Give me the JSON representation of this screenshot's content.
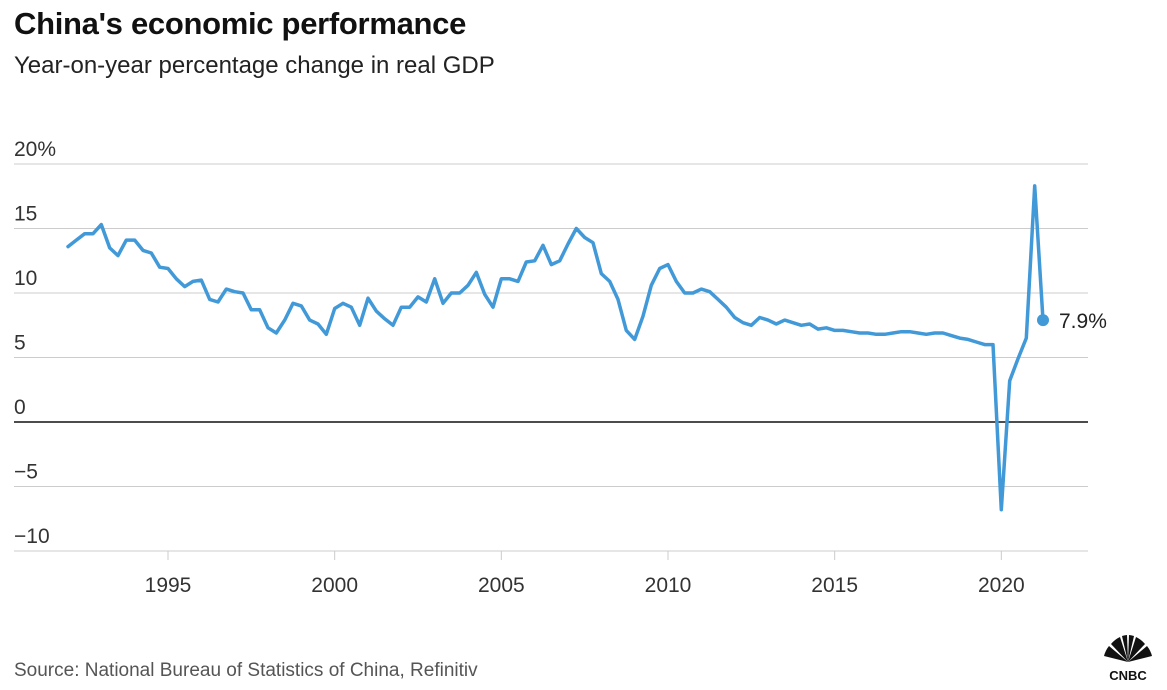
{
  "header": {
    "title": "China's economic performance",
    "subtitle": "Year-on-year percentage change in real GDP"
  },
  "footer": {
    "source": "Source: National Bureau of Statistics of China, Refinitiv",
    "logo_text": "CNBC",
    "logo_icon": "nbc-peacock-icon"
  },
  "chart_data": {
    "type": "line",
    "title": "China's economic performance",
    "subtitle": "Year-on-year percentage change in real GDP",
    "xlabel": "",
    "ylabel": "",
    "xlim": [
      1991.7,
      2022.6
    ],
    "ylim": [
      -10,
      20
    ],
    "x_ticks": [
      1995,
      2000,
      2005,
      2010,
      2015,
      2020
    ],
    "x_tick_labels": [
      "1995",
      "2000",
      "2005",
      "2010",
      "2015",
      "2020"
    ],
    "y_ticks": [
      20,
      15,
      10,
      5,
      0,
      -5,
      -10
    ],
    "y_tick_labels": [
      "20%",
      "15",
      "10",
      "5",
      "0",
      "−5",
      "−10"
    ],
    "grid": "horizontal",
    "line_color": "#4299d8",
    "end_label": "7.9%",
    "series": [
      {
        "values": [
          [
            1992.0,
            13.6
          ],
          [
            1992.25,
            14.1
          ],
          [
            1992.5,
            14.6
          ],
          [
            1992.75,
            14.6
          ],
          [
            1993.0,
            15.3
          ],
          [
            1993.25,
            13.5
          ],
          [
            1993.5,
            12.9
          ],
          [
            1993.75,
            14.1
          ],
          [
            1994.0,
            14.1
          ],
          [
            1994.25,
            13.3
          ],
          [
            1994.5,
            13.1
          ],
          [
            1994.75,
            12.0
          ],
          [
            1995.0,
            11.9
          ],
          [
            1995.25,
            11.1
          ],
          [
            1995.5,
            10.5
          ],
          [
            1995.75,
            10.9
          ],
          [
            1996.0,
            11.0
          ],
          [
            1996.25,
            9.5
          ],
          [
            1996.5,
            9.3
          ],
          [
            1996.75,
            10.3
          ],
          [
            1997.0,
            10.1
          ],
          [
            1997.25,
            10.0
          ],
          [
            1997.5,
            8.7
          ],
          [
            1997.75,
            8.7
          ],
          [
            1998.0,
            7.3
          ],
          [
            1998.25,
            6.9
          ],
          [
            1998.5,
            7.9
          ],
          [
            1998.75,
            9.2
          ],
          [
            1999.0,
            9.0
          ],
          [
            1999.25,
            7.9
          ],
          [
            1999.5,
            7.6
          ],
          [
            1999.75,
            6.8
          ],
          [
            2000.0,
            8.8
          ],
          [
            2000.25,
            9.2
          ],
          [
            2000.5,
            8.9
          ],
          [
            2000.75,
            7.5
          ],
          [
            2001.0,
            9.6
          ],
          [
            2001.25,
            8.6
          ],
          [
            2001.5,
            8.0
          ],
          [
            2001.75,
            7.5
          ],
          [
            2002.0,
            8.9
          ],
          [
            2002.25,
            8.9
          ],
          [
            2002.5,
            9.7
          ],
          [
            2002.75,
            9.3
          ],
          [
            2003.0,
            11.1
          ],
          [
            2003.25,
            9.2
          ],
          [
            2003.5,
            10.0
          ],
          [
            2003.75,
            10.0
          ],
          [
            2004.0,
            10.6
          ],
          [
            2004.25,
            11.6
          ],
          [
            2004.5,
            9.9
          ],
          [
            2004.75,
            8.9
          ],
          [
            2005.0,
            11.1
          ],
          [
            2005.25,
            11.1
          ],
          [
            2005.5,
            10.9
          ],
          [
            2005.75,
            12.4
          ],
          [
            2006.0,
            12.5
          ],
          [
            2006.25,
            13.7
          ],
          [
            2006.5,
            12.2
          ],
          [
            2006.75,
            12.5
          ],
          [
            2007.0,
            13.8
          ],
          [
            2007.25,
            15.0
          ],
          [
            2007.5,
            14.3
          ],
          [
            2007.75,
            13.9
          ],
          [
            2008.0,
            11.5
          ],
          [
            2008.25,
            10.9
          ],
          [
            2008.5,
            9.5
          ],
          [
            2008.75,
            7.1
          ],
          [
            2009.0,
            6.4
          ],
          [
            2009.25,
            8.2
          ],
          [
            2009.5,
            10.6
          ],
          [
            2009.75,
            11.9
          ],
          [
            2010.0,
            12.2
          ],
          [
            2010.25,
            10.9
          ],
          [
            2010.5,
            10.0
          ],
          [
            2010.75,
            10.0
          ],
          [
            2011.0,
            10.3
          ],
          [
            2011.25,
            10.1
          ],
          [
            2011.5,
            9.5
          ],
          [
            2011.75,
            8.9
          ],
          [
            2012.0,
            8.1
          ],
          [
            2012.25,
            7.7
          ],
          [
            2012.5,
            7.5
          ],
          [
            2012.75,
            8.1
          ],
          [
            2013.0,
            7.9
          ],
          [
            2013.25,
            7.6
          ],
          [
            2013.5,
            7.9
          ],
          [
            2013.75,
            7.7
          ],
          [
            2014.0,
            7.5
          ],
          [
            2014.25,
            7.6
          ],
          [
            2014.5,
            7.2
          ],
          [
            2014.75,
            7.3
          ],
          [
            2015.0,
            7.1
          ],
          [
            2015.25,
            7.1
          ],
          [
            2015.5,
            7.0
          ],
          [
            2015.75,
            6.9
          ],
          [
            2016.0,
            6.9
          ],
          [
            2016.25,
            6.8
          ],
          [
            2016.5,
            6.8
          ],
          [
            2016.75,
            6.9
          ],
          [
            2017.0,
            7.0
          ],
          [
            2017.25,
            7.0
          ],
          [
            2017.5,
            6.9
          ],
          [
            2017.75,
            6.8
          ],
          [
            2018.0,
            6.9
          ],
          [
            2018.25,
            6.9
          ],
          [
            2018.5,
            6.7
          ],
          [
            2018.75,
            6.5
          ],
          [
            2019.0,
            6.4
          ],
          [
            2019.25,
            6.2
          ],
          [
            2019.5,
            6.0
          ],
          [
            2019.75,
            6.0
          ],
          [
            2020.0,
            -6.8
          ],
          [
            2020.25,
            3.2
          ],
          [
            2020.5,
            4.9
          ],
          [
            2020.75,
            6.5
          ],
          [
            2021.0,
            18.3
          ],
          [
            2021.25,
            7.9
          ]
        ]
      }
    ]
  }
}
